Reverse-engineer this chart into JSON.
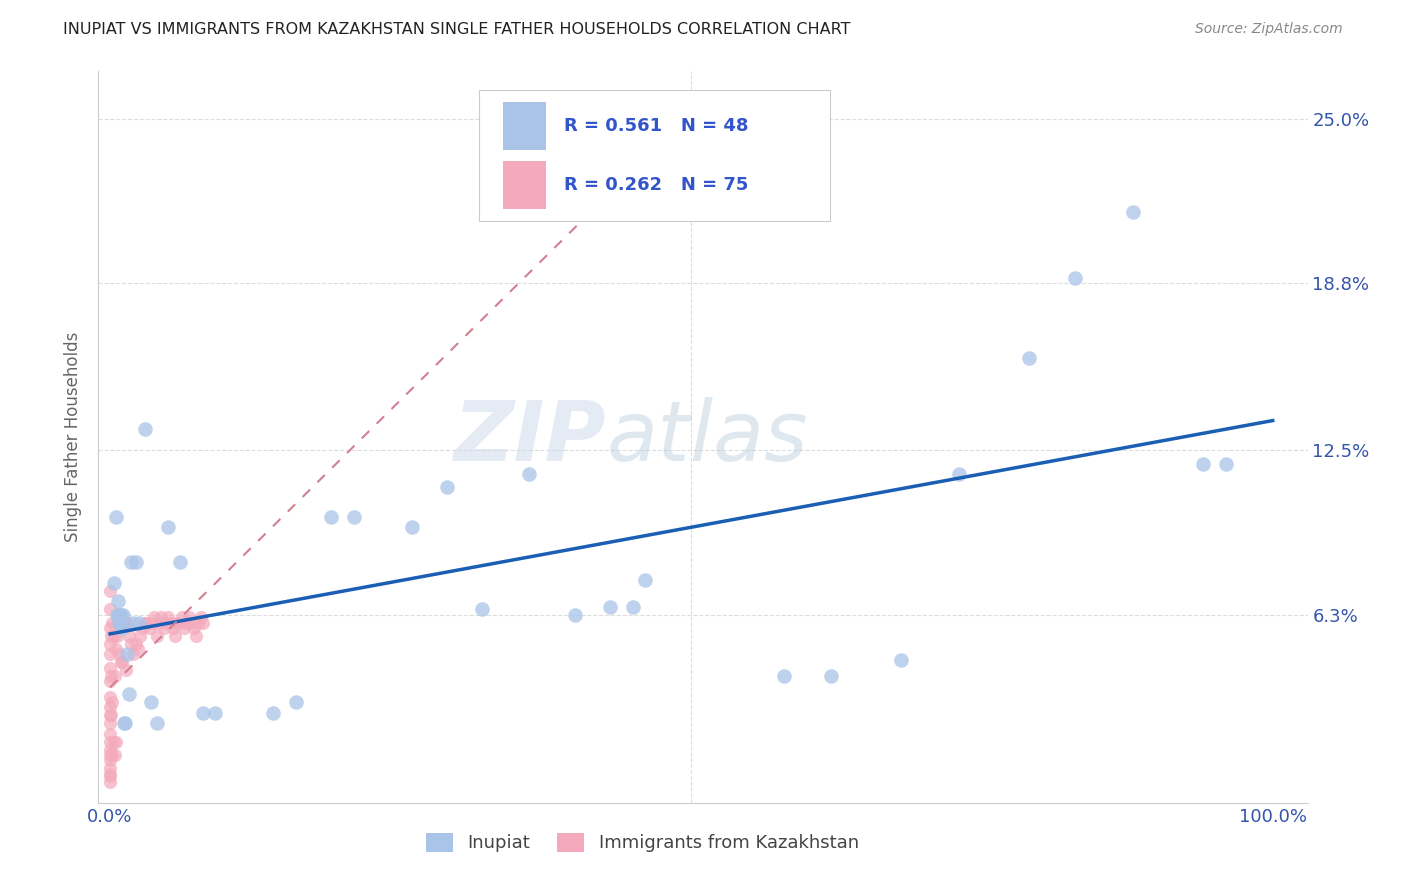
{
  "title": "INUPIAT VS IMMIGRANTS FROM KAZAKHSTAN SINGLE FATHER HOUSEHOLDS CORRELATION CHART",
  "source": "Source: ZipAtlas.com",
  "ylabel_label": "Single Father Households",
  "legend_label1": "Inupiat",
  "legend_label2": "Immigrants from Kazakhstan",
  "R1": 0.561,
  "N1": 48,
  "R2": 0.262,
  "N2": 75,
  "color_inupiat": "#aac4e8",
  "color_kazakh": "#f4aabc",
  "trendline_inupiat": "#1a5fb4",
  "trendline_kazakh": "#d08090",
  "ytick_vals": [
    0.063,
    0.125,
    0.188,
    0.25
  ],
  "ytick_labels": [
    "6.3%",
    "12.5%",
    "18.8%",
    "25.0%"
  ],
  "inupiat_x": [
    0.003,
    0.005,
    0.006,
    0.007,
    0.007,
    0.008,
    0.008,
    0.009,
    0.009,
    0.01,
    0.01,
    0.011,
    0.012,
    0.013,
    0.015,
    0.016,
    0.018,
    0.02,
    0.022,
    0.025,
    0.03,
    0.035,
    0.04,
    0.05,
    0.06,
    0.08,
    0.09,
    0.14,
    0.16,
    0.19,
    0.21,
    0.26,
    0.29,
    0.32,
    0.36,
    0.4,
    0.43,
    0.45,
    0.46,
    0.58,
    0.62,
    0.68,
    0.73,
    0.79,
    0.83,
    0.88,
    0.94,
    0.96
  ],
  "inupiat_y": [
    0.075,
    0.1,
    0.063,
    0.063,
    0.068,
    0.063,
    0.06,
    0.063,
    0.06,
    0.06,
    0.058,
    0.063,
    0.022,
    0.022,
    0.048,
    0.033,
    0.083,
    0.06,
    0.083,
    0.06,
    0.133,
    0.03,
    0.022,
    0.096,
    0.083,
    0.026,
    0.026,
    0.026,
    0.03,
    0.1,
    0.1,
    0.096,
    0.111,
    0.065,
    0.116,
    0.063,
    0.066,
    0.066,
    0.076,
    0.04,
    0.04,
    0.046,
    0.116,
    0.16,
    0.19,
    0.215,
    0.12,
    0.12
  ],
  "kazakh_x": [
    0.0,
    0.0,
    0.0,
    0.0,
    0.0,
    0.0,
    0.0,
    0.0,
    0.0,
    0.0,
    0.0,
    0.0,
    0.0,
    0.0,
    0.0,
    0.0,
    0.0,
    0.0,
    0.0,
    0.0,
    0.001,
    0.001,
    0.001,
    0.002,
    0.002,
    0.002,
    0.003,
    0.003,
    0.004,
    0.004,
    0.005,
    0.005,
    0.006,
    0.007,
    0.008,
    0.009,
    0.01,
    0.011,
    0.012,
    0.013,
    0.014,
    0.015,
    0.016,
    0.018,
    0.02,
    0.022,
    0.024,
    0.026,
    0.028,
    0.03,
    0.032,
    0.034,
    0.036,
    0.038,
    0.04,
    0.042,
    0.044,
    0.046,
    0.048,
    0.05,
    0.052,
    0.054,
    0.056,
    0.058,
    0.06,
    0.062,
    0.064,
    0.066,
    0.068,
    0.07,
    0.072,
    0.074,
    0.076,
    0.078,
    0.08
  ],
  "kazakh_y": [
    0.072,
    0.065,
    0.058,
    0.052,
    0.048,
    0.043,
    0.038,
    0.032,
    0.028,
    0.025,
    0.022,
    0.018,
    0.015,
    0.012,
    0.01,
    0.008,
    0.005,
    0.003,
    0.002,
    0.0,
    0.055,
    0.04,
    0.025,
    0.06,
    0.03,
    0.01,
    0.055,
    0.015,
    0.04,
    0.01,
    0.05,
    0.015,
    0.055,
    0.06,
    0.048,
    0.045,
    0.045,
    0.06,
    0.06,
    0.06,
    0.042,
    0.06,
    0.055,
    0.052,
    0.048,
    0.052,
    0.05,
    0.055,
    0.058,
    0.06,
    0.06,
    0.058,
    0.06,
    0.062,
    0.055,
    0.06,
    0.062,
    0.058,
    0.06,
    0.062,
    0.06,
    0.058,
    0.055,
    0.06,
    0.06,
    0.062,
    0.058,
    0.06,
    0.062,
    0.06,
    0.058,
    0.055,
    0.06,
    0.062,
    0.06
  ]
}
